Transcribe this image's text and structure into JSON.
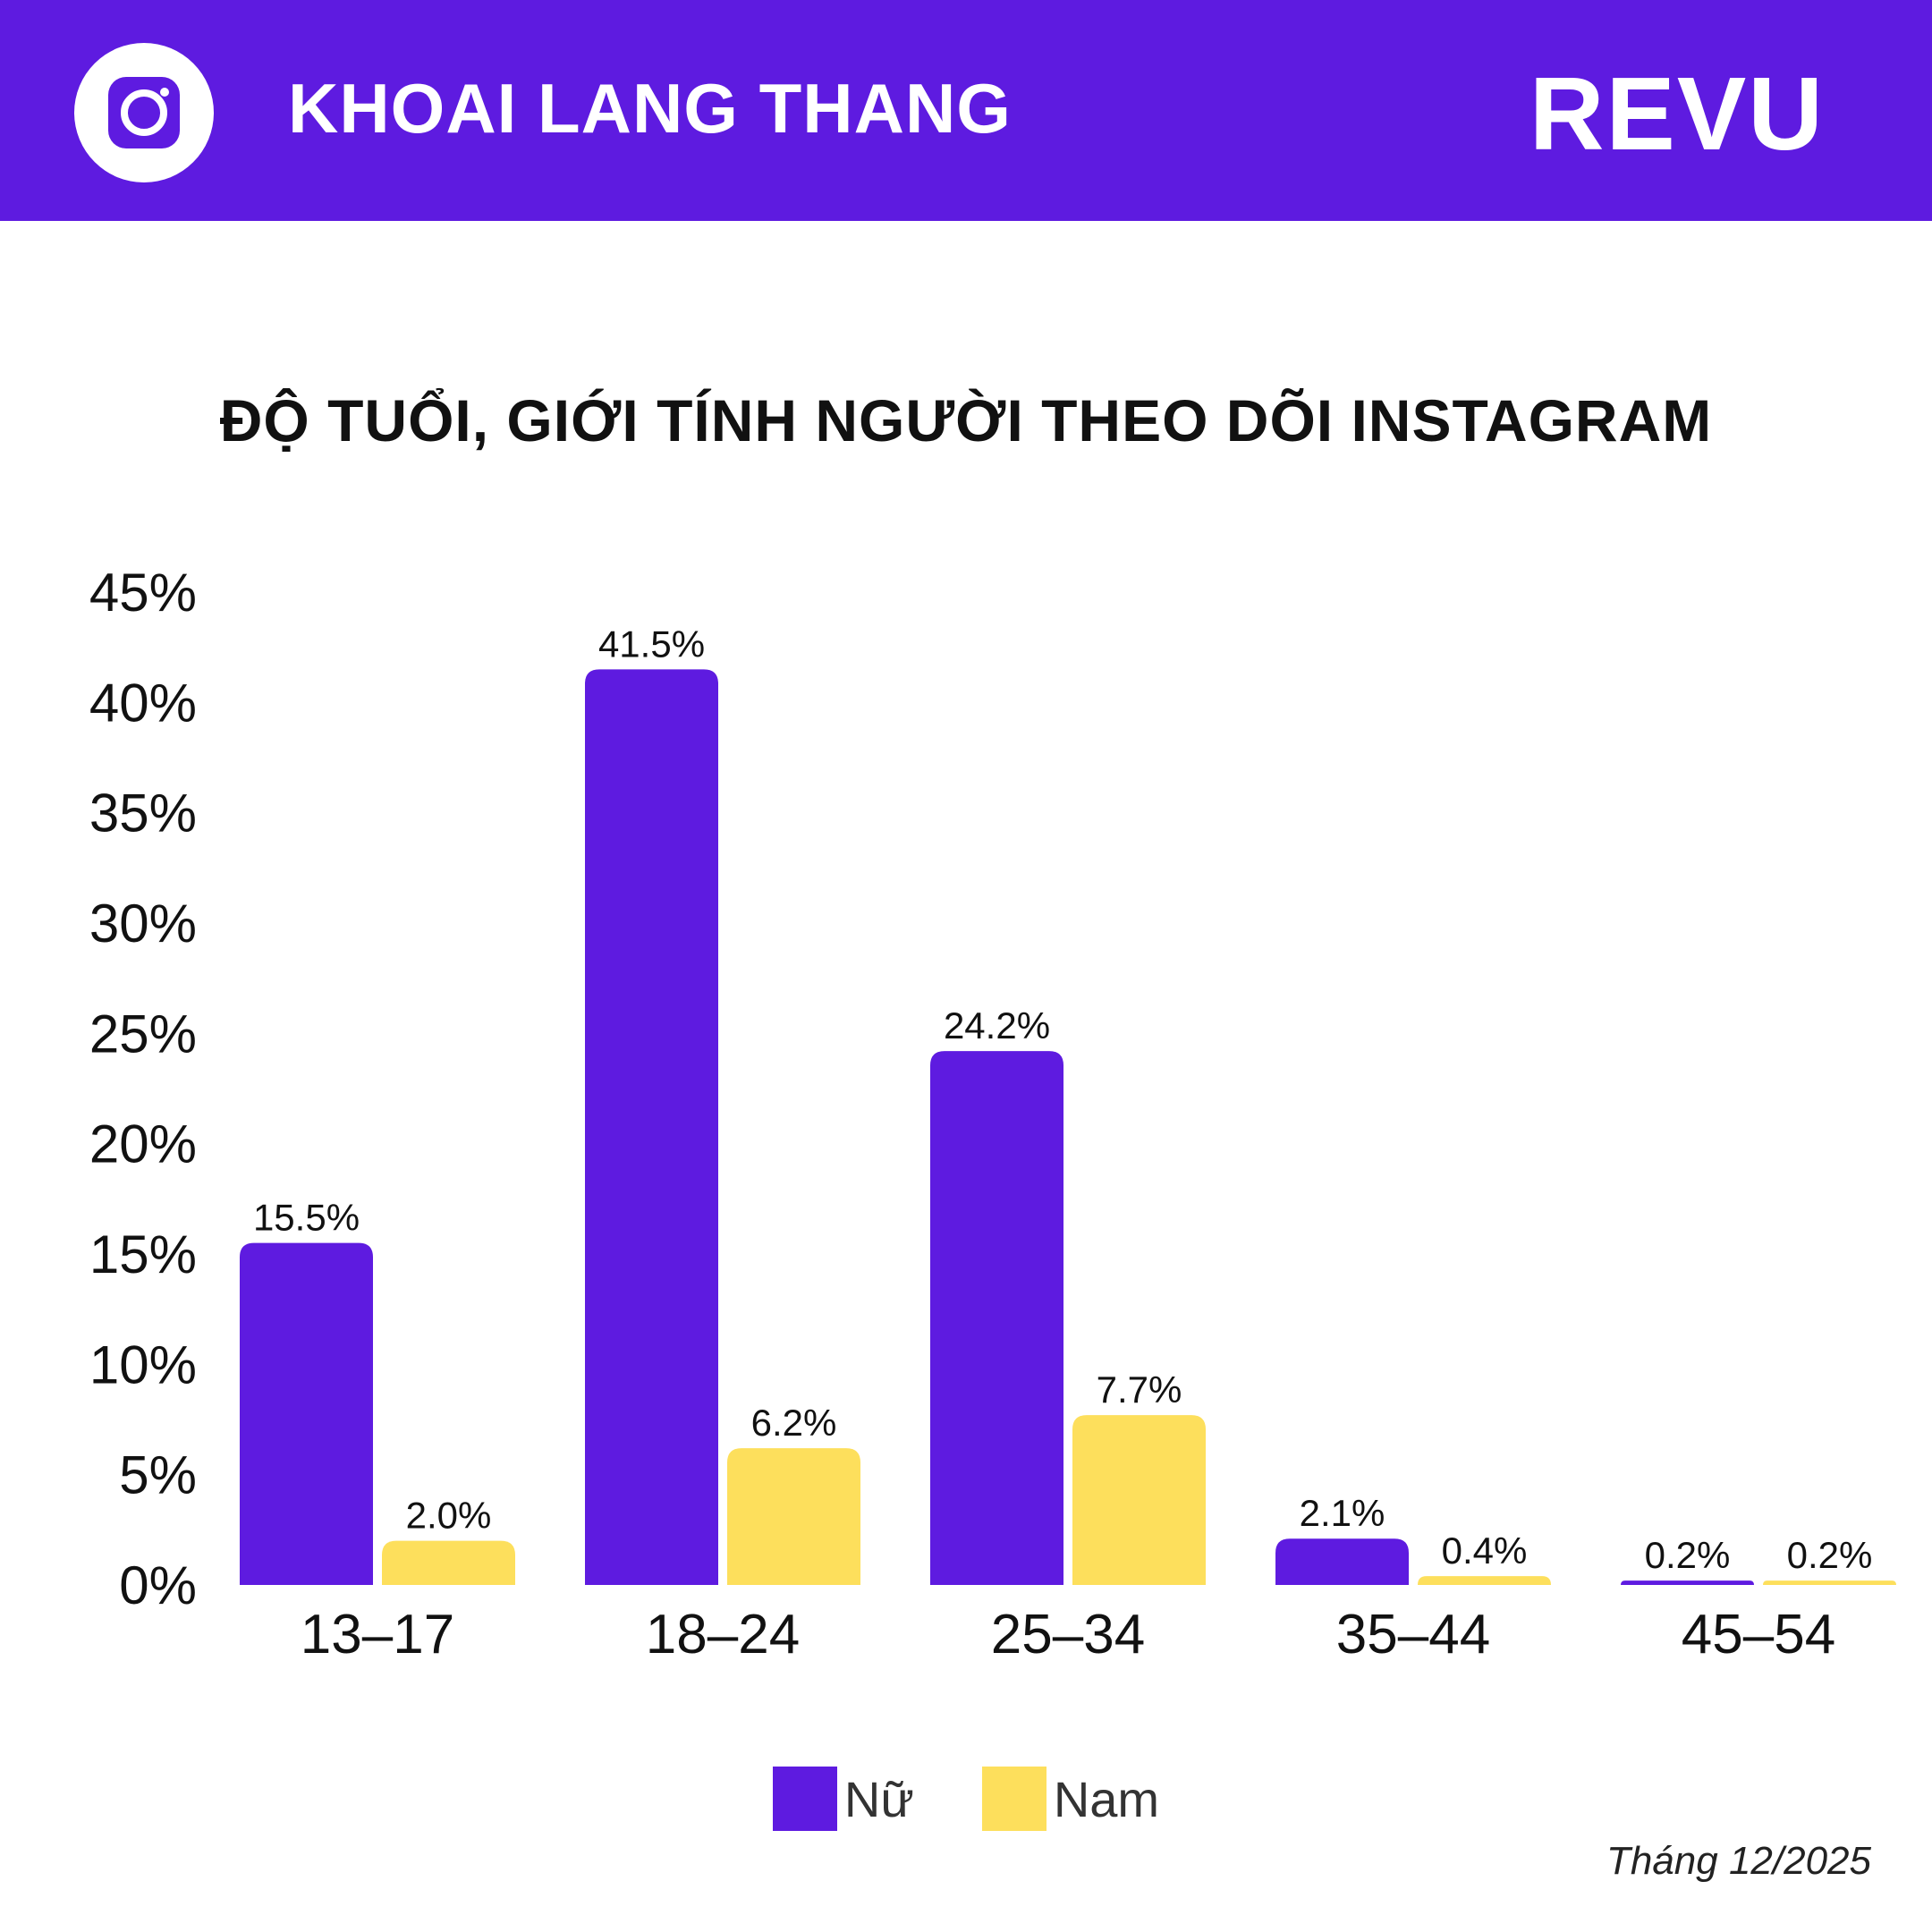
{
  "header": {
    "brand_name": "KHOAI LANG THANG",
    "logo_text": "REVU",
    "icon": "instagram-icon",
    "background_color": "#5e1be0"
  },
  "footer": {
    "date_note": "Tháng 12/2025"
  },
  "chart_data": {
    "type": "bar",
    "title": "ĐỘ TUỔI, GIỚI TÍNH NGƯỜI THEO DÕI INSTAGRAM",
    "xlabel": "",
    "ylabel": "",
    "categories": [
      "13–17",
      "18–24",
      "25–34",
      "35–44",
      "45–54"
    ],
    "series": [
      {
        "name": "Nữ",
        "color": "#5e1be0",
        "values": [
          15.5,
          41.5,
          24.2,
          2.1,
          0.2
        ],
        "labels": [
          "15.5%",
          "41.5%",
          "24.2%",
          "2.1%",
          "0.2%"
        ]
      },
      {
        "name": "Nam",
        "color": "#fddf5c",
        "values": [
          2.0,
          6.2,
          7.7,
          0.4,
          0.2
        ],
        "labels": [
          "2.0%",
          "6.2%",
          "7.7%",
          "0.4%",
          "0.2%"
        ]
      }
    ],
    "ylim": [
      0,
      45
    ],
    "yticks": [
      0,
      5,
      10,
      15,
      20,
      25,
      30,
      35,
      40,
      45
    ],
    "ytick_labels": [
      "0%",
      "5%",
      "10%",
      "15%",
      "20%",
      "25%",
      "30%",
      "35%",
      "40%",
      "45%"
    ],
    "grid": false,
    "legend_position": "bottom-center"
  }
}
